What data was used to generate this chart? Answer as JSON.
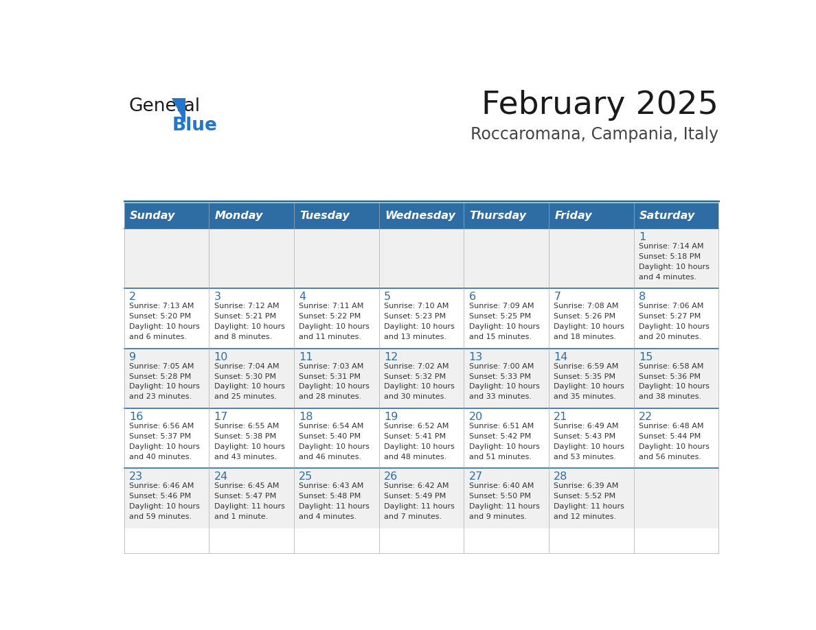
{
  "title": "February 2025",
  "subtitle": "Roccaromana, Campania, Italy",
  "header_bg": "#2E6DA4",
  "header_text_color": "#FFFFFF",
  "cell_bg_odd": "#F0F0F0",
  "cell_bg_even": "#FFFFFF",
  "day_number_color": "#2E6DA4",
  "text_color": "#333333",
  "divider_color": "#2E6DA4",
  "days_of_week": [
    "Sunday",
    "Monday",
    "Tuesday",
    "Wednesday",
    "Thursday",
    "Friday",
    "Saturday"
  ],
  "weeks": [
    [
      {
        "day": "",
        "sunrise": "",
        "sunset": "",
        "daylight": ""
      },
      {
        "day": "",
        "sunrise": "",
        "sunset": "",
        "daylight": ""
      },
      {
        "day": "",
        "sunrise": "",
        "sunset": "",
        "daylight": ""
      },
      {
        "day": "",
        "sunrise": "",
        "sunset": "",
        "daylight": ""
      },
      {
        "day": "",
        "sunrise": "",
        "sunset": "",
        "daylight": ""
      },
      {
        "day": "",
        "sunrise": "",
        "sunset": "",
        "daylight": ""
      },
      {
        "day": "1",
        "sunrise": "Sunrise: 7:14 AM",
        "sunset": "Sunset: 5:18 PM",
        "daylight": "Daylight: 10 hours\nand 4 minutes."
      }
    ],
    [
      {
        "day": "2",
        "sunrise": "Sunrise: 7:13 AM",
        "sunset": "Sunset: 5:20 PM",
        "daylight": "Daylight: 10 hours\nand 6 minutes."
      },
      {
        "day": "3",
        "sunrise": "Sunrise: 7:12 AM",
        "sunset": "Sunset: 5:21 PM",
        "daylight": "Daylight: 10 hours\nand 8 minutes."
      },
      {
        "day": "4",
        "sunrise": "Sunrise: 7:11 AM",
        "sunset": "Sunset: 5:22 PM",
        "daylight": "Daylight: 10 hours\nand 11 minutes."
      },
      {
        "day": "5",
        "sunrise": "Sunrise: 7:10 AM",
        "sunset": "Sunset: 5:23 PM",
        "daylight": "Daylight: 10 hours\nand 13 minutes."
      },
      {
        "day": "6",
        "sunrise": "Sunrise: 7:09 AM",
        "sunset": "Sunset: 5:25 PM",
        "daylight": "Daylight: 10 hours\nand 15 minutes."
      },
      {
        "day": "7",
        "sunrise": "Sunrise: 7:08 AM",
        "sunset": "Sunset: 5:26 PM",
        "daylight": "Daylight: 10 hours\nand 18 minutes."
      },
      {
        "day": "8",
        "sunrise": "Sunrise: 7:06 AM",
        "sunset": "Sunset: 5:27 PM",
        "daylight": "Daylight: 10 hours\nand 20 minutes."
      }
    ],
    [
      {
        "day": "9",
        "sunrise": "Sunrise: 7:05 AM",
        "sunset": "Sunset: 5:28 PM",
        "daylight": "Daylight: 10 hours\nand 23 minutes."
      },
      {
        "day": "10",
        "sunrise": "Sunrise: 7:04 AM",
        "sunset": "Sunset: 5:30 PM",
        "daylight": "Daylight: 10 hours\nand 25 minutes."
      },
      {
        "day": "11",
        "sunrise": "Sunrise: 7:03 AM",
        "sunset": "Sunset: 5:31 PM",
        "daylight": "Daylight: 10 hours\nand 28 minutes."
      },
      {
        "day": "12",
        "sunrise": "Sunrise: 7:02 AM",
        "sunset": "Sunset: 5:32 PM",
        "daylight": "Daylight: 10 hours\nand 30 minutes."
      },
      {
        "day": "13",
        "sunrise": "Sunrise: 7:00 AM",
        "sunset": "Sunset: 5:33 PM",
        "daylight": "Daylight: 10 hours\nand 33 minutes."
      },
      {
        "day": "14",
        "sunrise": "Sunrise: 6:59 AM",
        "sunset": "Sunset: 5:35 PM",
        "daylight": "Daylight: 10 hours\nand 35 minutes."
      },
      {
        "day": "15",
        "sunrise": "Sunrise: 6:58 AM",
        "sunset": "Sunset: 5:36 PM",
        "daylight": "Daylight: 10 hours\nand 38 minutes."
      }
    ],
    [
      {
        "day": "16",
        "sunrise": "Sunrise: 6:56 AM",
        "sunset": "Sunset: 5:37 PM",
        "daylight": "Daylight: 10 hours\nand 40 minutes."
      },
      {
        "day": "17",
        "sunrise": "Sunrise: 6:55 AM",
        "sunset": "Sunset: 5:38 PM",
        "daylight": "Daylight: 10 hours\nand 43 minutes."
      },
      {
        "day": "18",
        "sunrise": "Sunrise: 6:54 AM",
        "sunset": "Sunset: 5:40 PM",
        "daylight": "Daylight: 10 hours\nand 46 minutes."
      },
      {
        "day": "19",
        "sunrise": "Sunrise: 6:52 AM",
        "sunset": "Sunset: 5:41 PM",
        "daylight": "Daylight: 10 hours\nand 48 minutes."
      },
      {
        "day": "20",
        "sunrise": "Sunrise: 6:51 AM",
        "sunset": "Sunset: 5:42 PM",
        "daylight": "Daylight: 10 hours\nand 51 minutes."
      },
      {
        "day": "21",
        "sunrise": "Sunrise: 6:49 AM",
        "sunset": "Sunset: 5:43 PM",
        "daylight": "Daylight: 10 hours\nand 53 minutes."
      },
      {
        "day": "22",
        "sunrise": "Sunrise: 6:48 AM",
        "sunset": "Sunset: 5:44 PM",
        "daylight": "Daylight: 10 hours\nand 56 minutes."
      }
    ],
    [
      {
        "day": "23",
        "sunrise": "Sunrise: 6:46 AM",
        "sunset": "Sunset: 5:46 PM",
        "daylight": "Daylight: 10 hours\nand 59 minutes."
      },
      {
        "day": "24",
        "sunrise": "Sunrise: 6:45 AM",
        "sunset": "Sunset: 5:47 PM",
        "daylight": "Daylight: 11 hours\nand 1 minute."
      },
      {
        "day": "25",
        "sunrise": "Sunrise: 6:43 AM",
        "sunset": "Sunset: 5:48 PM",
        "daylight": "Daylight: 11 hours\nand 4 minutes."
      },
      {
        "day": "26",
        "sunrise": "Sunrise: 6:42 AM",
        "sunset": "Sunset: 5:49 PM",
        "daylight": "Daylight: 11 hours\nand 7 minutes."
      },
      {
        "day": "27",
        "sunrise": "Sunrise: 6:40 AM",
        "sunset": "Sunset: 5:50 PM",
        "daylight": "Daylight: 11 hours\nand 9 minutes."
      },
      {
        "day": "28",
        "sunrise": "Sunrise: 6:39 AM",
        "sunset": "Sunset: 5:52 PM",
        "daylight": "Daylight: 11 hours\nand 12 minutes."
      },
      {
        "day": "",
        "sunrise": "",
        "sunset": "",
        "daylight": ""
      }
    ]
  ]
}
